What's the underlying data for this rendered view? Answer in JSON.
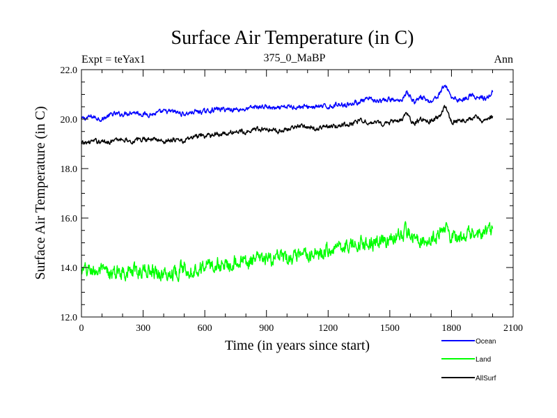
{
  "chart_data": {
    "type": "line",
    "title": "Surface Air Temperature (in C)",
    "subtitle": "375_0_MaBP",
    "left_label": "Expt = teYax1",
    "right_label": "Ann",
    "xlabel": "Time (in years since start)",
    "ylabel": "Surface Air Temperature (in C)",
    "xlim": [
      0,
      2100
    ],
    "ylim": [
      12,
      22
    ],
    "x_ticks": [
      0,
      300,
      600,
      900,
      1200,
      1500,
      1800,
      2100
    ],
    "x_tick_labels": [
      "0",
      "300",
      "600",
      "900",
      "1200",
      "1500",
      "1800",
      "2100"
    ],
    "y_ticks": [
      12,
      14,
      16,
      18,
      20,
      22
    ],
    "y_tick_labels": [
      "12.0",
      "14.0",
      "16.0",
      "18.0",
      "20.0",
      "22.0"
    ],
    "x_minor_step": 100,
    "y_minor_step": 0.5,
    "grid": false,
    "legend_position": "bottom-right",
    "series": [
      {
        "name": "Ocean",
        "color": "#0000ff",
        "x": [
          0,
          50,
          100,
          150,
          200,
          250,
          300,
          350,
          400,
          450,
          500,
          550,
          600,
          650,
          700,
          750,
          800,
          850,
          900,
          950,
          1000,
          1050,
          1100,
          1150,
          1200,
          1250,
          1300,
          1350,
          1400,
          1450,
          1500,
          1550,
          1580,
          1620,
          1650,
          1700,
          1740,
          1770,
          1800,
          1830,
          1860,
          1900,
          1920,
          1950,
          1970,
          2000
        ],
        "values": [
          20.0,
          20.1,
          20.0,
          20.2,
          20.2,
          20.3,
          20.2,
          20.2,
          20.3,
          20.3,
          20.2,
          20.3,
          20.3,
          20.4,
          20.4,
          20.4,
          20.4,
          20.5,
          20.5,
          20.4,
          20.5,
          20.5,
          20.5,
          20.5,
          20.5,
          20.6,
          20.6,
          20.7,
          20.8,
          20.7,
          20.8,
          20.7,
          21.1,
          20.7,
          20.9,
          20.7,
          21.0,
          21.4,
          20.9,
          20.8,
          20.8,
          21.0,
          20.8,
          20.9,
          20.8,
          21.1
        ],
        "noise": 0.07
      },
      {
        "name": "Land",
        "color": "#00ff00",
        "x": [
          0,
          50,
          100,
          150,
          200,
          250,
          300,
          350,
          400,
          450,
          500,
          550,
          600,
          650,
          700,
          750,
          800,
          850,
          900,
          950,
          1000,
          1050,
          1100,
          1150,
          1200,
          1250,
          1300,
          1350,
          1400,
          1450,
          1500,
          1550,
          1580,
          1620,
          1650,
          1700,
          1750,
          1780,
          1800,
          1850,
          1900,
          1950,
          2000
        ],
        "values": [
          13.8,
          13.9,
          13.8,
          13.7,
          13.9,
          13.8,
          13.9,
          13.9,
          13.7,
          13.8,
          14.0,
          13.9,
          14.1,
          14.1,
          14.1,
          14.3,
          14.2,
          14.3,
          14.3,
          14.4,
          14.3,
          14.4,
          14.5,
          14.5,
          14.7,
          14.9,
          14.9,
          15.0,
          15.0,
          15.0,
          15.2,
          15.2,
          15.5,
          15.1,
          15.2,
          15.1,
          15.4,
          15.7,
          15.2,
          15.1,
          15.4,
          15.3,
          15.5
        ],
        "noise": 0.22
      },
      {
        "name": "AllSurf",
        "color": "#000000",
        "x": [
          0,
          50,
          100,
          150,
          200,
          250,
          300,
          350,
          400,
          450,
          500,
          550,
          600,
          650,
          700,
          750,
          800,
          850,
          900,
          950,
          1000,
          1050,
          1100,
          1150,
          1200,
          1250,
          1300,
          1350,
          1400,
          1450,
          1500,
          1550,
          1580,
          1620,
          1650,
          1700,
          1740,
          1770,
          1800,
          1850,
          1900,
          1920,
          1950,
          2000
        ],
        "values": [
          19.0,
          19.1,
          19.1,
          19.1,
          19.2,
          19.1,
          19.2,
          19.2,
          19.1,
          19.2,
          19.1,
          19.3,
          19.3,
          19.4,
          19.4,
          19.5,
          19.5,
          19.6,
          19.6,
          19.5,
          19.6,
          19.7,
          19.7,
          19.6,
          19.7,
          19.7,
          19.8,
          19.9,
          19.9,
          19.8,
          19.9,
          19.9,
          20.2,
          19.8,
          20.0,
          19.9,
          20.1,
          20.5,
          19.9,
          19.9,
          20.0,
          20.2,
          19.9,
          20.1
        ],
        "noise": 0.07
      }
    ]
  }
}
